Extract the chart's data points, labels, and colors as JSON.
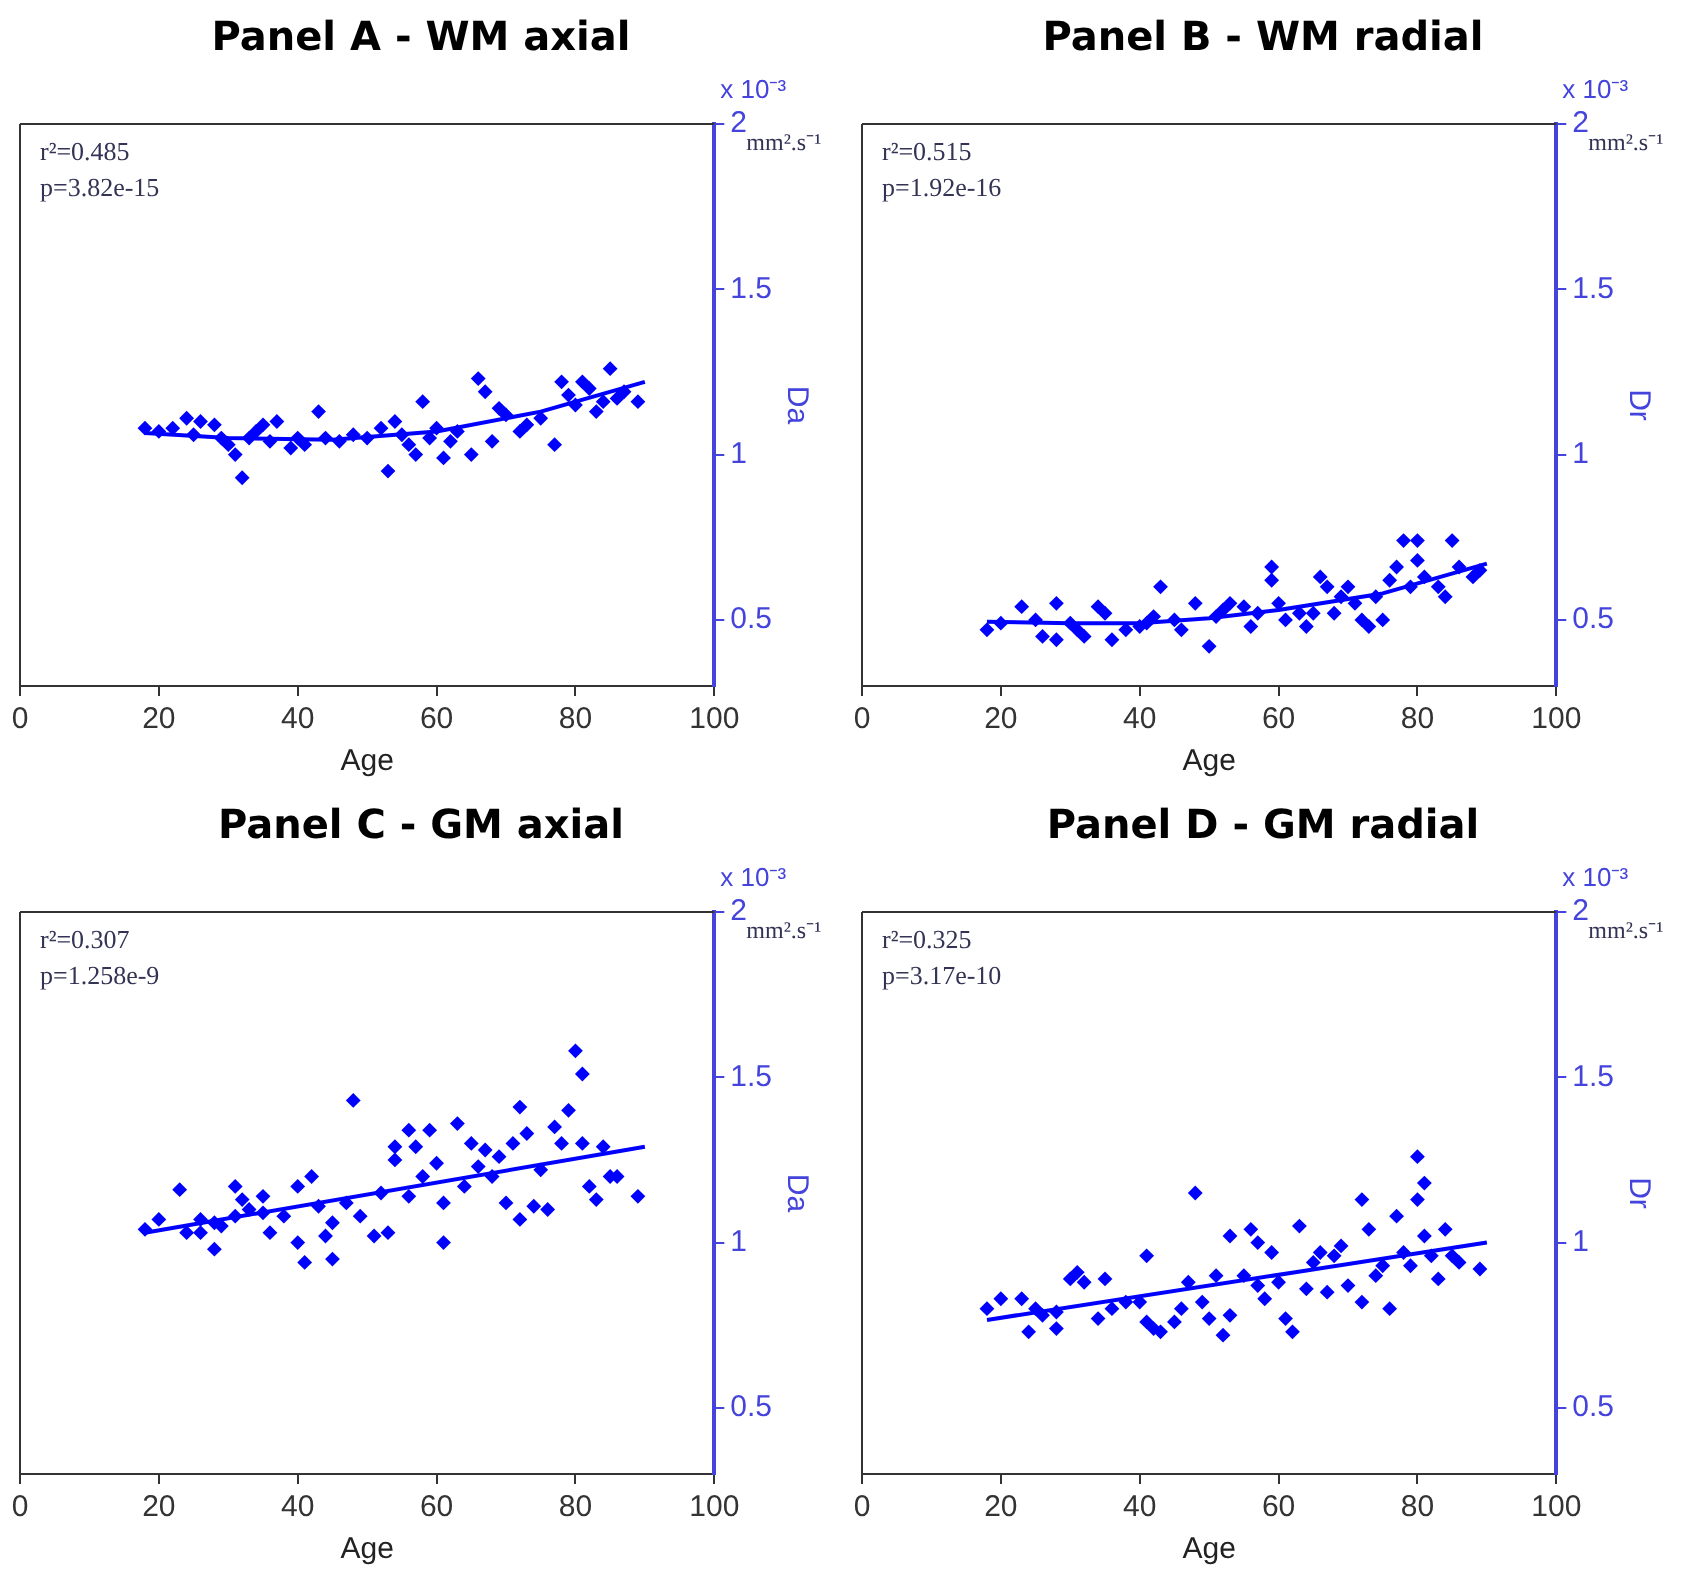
{
  "chart_data": [
    {
      "type": "scatter",
      "title": "Panel A - WM axial",
      "xlabel": "Age",
      "ylabel": "Da",
      "xlim": [
        0,
        100
      ],
      "xticks": [
        0,
        20,
        40,
        60,
        80,
        100
      ],
      "ylim": [
        0.3,
        2
      ],
      "yticks": [
        0.5,
        1,
        1.5,
        2
      ],
      "marker": "diamond",
      "grid": false,
      "annotations": [
        "r²=0.485",
        "p=3.82e-15",
        "x 10⁻³",
        "mm².s⁻¹"
      ],
      "series": [
        {
          "color": "#0000ff",
          "x": [
            18,
            20,
            22,
            24,
            25,
            26,
            28,
            29,
            30,
            31,
            32,
            33,
            34,
            35,
            36,
            37,
            39,
            40,
            41,
            43,
            44,
            46,
            48,
            50,
            52,
            53,
            54,
            55,
            56,
            57,
            58,
            59,
            60,
            61,
            62,
            63,
            65,
            66,
            67,
            68,
            69,
            70,
            72,
            73,
            75,
            77,
            78,
            79,
            80,
            81,
            82,
            83,
            84,
            85,
            86,
            87,
            89
          ],
          "values": [
            1.08,
            1.07,
            1.08,
            1.11,
            1.06,
            1.1,
            1.09,
            1.05,
            1.03,
            1.0,
            0.93,
            1.05,
            1.07,
            1.09,
            1.04,
            1.1,
            1.02,
            1.05,
            1.03,
            1.13,
            1.05,
            1.04,
            1.06,
            1.05,
            1.08,
            0.95,
            1.1,
            1.06,
            1.03,
            1.0,
            1.16,
            1.05,
            1.08,
            0.99,
            1.04,
            1.07,
            1.0,
            1.23,
            1.19,
            1.04,
            1.14,
            1.12,
            1.07,
            1.09,
            1.11,
            1.03,
            1.22,
            1.18,
            1.15,
            1.22,
            1.2,
            1.13,
            1.16,
            1.26,
            1.17,
            1.19,
            1.16
          ]
        },
        {
          "type": "line",
          "marker": "none",
          "color": "#0000ff",
          "x": [
            18,
            30,
            45,
            60,
            75,
            90
          ],
          "values": [
            1.065,
            1.05,
            1.045,
            1.07,
            1.13,
            1.22
          ]
        }
      ]
    },
    {
      "type": "scatter",
      "title": "Panel B - WM radial",
      "xlabel": "Age",
      "ylabel": "Dr",
      "xlim": [
        0,
        100
      ],
      "xticks": [
        0,
        20,
        40,
        60,
        80,
        100
      ],
      "ylim": [
        0.3,
        2
      ],
      "yticks": [
        0.5,
        1,
        1.5,
        2
      ],
      "marker": "diamond",
      "grid": false,
      "annotations": [
        "r²=0.515",
        "p=1.92e-16",
        "x 10⁻³",
        "mm².s⁻¹"
      ],
      "series": [
        {
          "color": "#0000ff",
          "x": [
            18,
            20,
            23,
            25,
            26,
            28,
            28,
            30,
            31,
            32,
            34,
            35,
            36,
            38,
            40,
            41,
            42,
            43,
            45,
            46,
            48,
            50,
            51,
            52,
            53,
            55,
            56,
            57,
            59,
            59,
            60,
            61,
            63,
            64,
            65,
            66,
            67,
            68,
            69,
            70,
            71,
            72,
            73,
            74,
            75,
            76,
            77,
            78,
            79,
            80,
            80,
            81,
            83,
            84,
            85,
            86,
            88,
            89
          ],
          "values": [
            0.47,
            0.49,
            0.54,
            0.5,
            0.45,
            0.55,
            0.44,
            0.49,
            0.47,
            0.45,
            0.54,
            0.52,
            0.44,
            0.47,
            0.48,
            0.49,
            0.51,
            0.6,
            0.5,
            0.47,
            0.55,
            0.42,
            0.51,
            0.53,
            0.55,
            0.54,
            0.48,
            0.52,
            0.66,
            0.62,
            0.55,
            0.5,
            0.52,
            0.48,
            0.52,
            0.63,
            0.6,
            0.52,
            0.57,
            0.6,
            0.55,
            0.5,
            0.48,
            0.57,
            0.5,
            0.62,
            0.66,
            0.74,
            0.6,
            0.74,
            0.68,
            0.63,
            0.6,
            0.57,
            0.74,
            0.66,
            0.63,
            0.65
          ]
        },
        {
          "type": "line",
          "marker": "none",
          "color": "#0000ff",
          "x": [
            18,
            30,
            40,
            50,
            60,
            75,
            90
          ],
          "values": [
            0.494,
            0.49,
            0.49,
            0.505,
            0.53,
            0.58,
            0.67
          ]
        }
      ]
    },
    {
      "type": "scatter",
      "title": "Panel C - GM axial",
      "xlabel": "Age",
      "ylabel": "Da",
      "xlim": [
        0,
        100
      ],
      "xticks": [
        0,
        20,
        40,
        60,
        80,
        100
      ],
      "ylim": [
        0.3,
        2
      ],
      "yticks": [
        0.5,
        1,
        1.5,
        2
      ],
      "marker": "diamond",
      "grid": false,
      "annotations": [
        "r²=0.307",
        "p=1.258e-9",
        "x 10⁻³",
        "mm².s⁻¹"
      ],
      "series": [
        {
          "color": "#0000ff",
          "x": [
            18,
            20,
            23,
            24,
            26,
            26,
            28,
            28,
            29,
            31,
            31,
            32,
            33,
            35,
            35,
            36,
            38,
            40,
            40,
            41,
            42,
            43,
            44,
            45,
            45,
            47,
            48,
            49,
            51,
            52,
            53,
            54,
            54,
            56,
            56,
            57,
            58,
            59,
            60,
            61,
            61,
            63,
            64,
            65,
            66,
            67,
            68,
            69,
            70,
            71,
            72,
            72,
            73,
            74,
            75,
            76,
            77,
            78,
            79,
            80,
            81,
            81,
            82,
            83,
            84,
            85,
            86,
            89
          ],
          "values": [
            1.04,
            1.07,
            1.16,
            1.03,
            1.07,
            1.03,
            0.98,
            1.06,
            1.05,
            1.17,
            1.08,
            1.13,
            1.1,
            1.14,
            1.09,
            1.03,
            1.08,
            1.17,
            1.0,
            0.94,
            1.2,
            1.11,
            1.02,
            0.95,
            1.06,
            1.12,
            1.43,
            1.08,
            1.02,
            1.15,
            1.03,
            1.29,
            1.25,
            1.14,
            1.34,
            1.29,
            1.2,
            1.34,
            1.24,
            1.0,
            1.12,
            1.36,
            1.17,
            1.3,
            1.23,
            1.28,
            1.2,
            1.26,
            1.12,
            1.3,
            1.07,
            1.41,
            1.33,
            1.11,
            1.22,
            1.1,
            1.35,
            1.3,
            1.4,
            1.58,
            1.51,
            1.3,
            1.17,
            1.13,
            1.29,
            1.2,
            1.2,
            1.14
          ]
        },
        {
          "type": "line",
          "marker": "none",
          "color": "#0000ff",
          "x": [
            18,
            90
          ],
          "values": [
            1.03,
            1.29
          ]
        }
      ]
    },
    {
      "type": "scatter",
      "title": "Panel D - GM radial",
      "xlabel": "Age",
      "ylabel": "Dr",
      "xlim": [
        0,
        100
      ],
      "xticks": [
        0,
        20,
        40,
        60,
        80,
        100
      ],
      "ylim": [
        0.3,
        2
      ],
      "yticks": [
        0.5,
        1,
        1.5,
        2
      ],
      "marker": "diamond",
      "grid": false,
      "annotations": [
        "r²=0.325",
        "p=3.17e-10",
        "x 10⁻³",
        "mm².s⁻¹"
      ],
      "series": [
        {
          "color": "#0000ff",
          "x": [
            18,
            20,
            23,
            24,
            25,
            26,
            28,
            28,
            30,
            31,
            32,
            34,
            35,
            36,
            38,
            40,
            41,
            41,
            42,
            43,
            45,
            46,
            47,
            48,
            49,
            50,
            51,
            52,
            53,
            53,
            55,
            56,
            57,
            57,
            58,
            59,
            60,
            61,
            62,
            63,
            64,
            65,
            66,
            67,
            68,
            69,
            70,
            72,
            72,
            73,
            74,
            75,
            76,
            77,
            78,
            79,
            80,
            80,
            81,
            81,
            82,
            83,
            84,
            85,
            86,
            89
          ],
          "values": [
            0.8,
            0.83,
            0.83,
            0.73,
            0.8,
            0.78,
            0.74,
            0.79,
            0.89,
            0.91,
            0.88,
            0.77,
            0.89,
            0.8,
            0.82,
            0.82,
            0.76,
            0.96,
            0.74,
            0.73,
            0.76,
            0.8,
            0.88,
            1.15,
            0.82,
            0.77,
            0.9,
            0.72,
            1.02,
            0.78,
            0.9,
            1.04,
            0.87,
            1.0,
            0.83,
            0.97,
            0.88,
            0.77,
            0.73,
            1.05,
            0.86,
            0.94,
            0.97,
            0.85,
            0.96,
            0.99,
            0.87,
            1.13,
            0.82,
            1.04,
            0.9,
            0.93,
            0.8,
            1.08,
            0.97,
            0.93,
            1.26,
            1.13,
            1.18,
            1.02,
            0.96,
            0.89,
            1.04,
            0.96,
            0.94,
            0.92
          ]
        },
        {
          "type": "line",
          "marker": "none",
          "color": "#0000ff",
          "x": [
            18,
            90
          ],
          "values": [
            0.766,
            1.0
          ]
        }
      ]
    }
  ]
}
